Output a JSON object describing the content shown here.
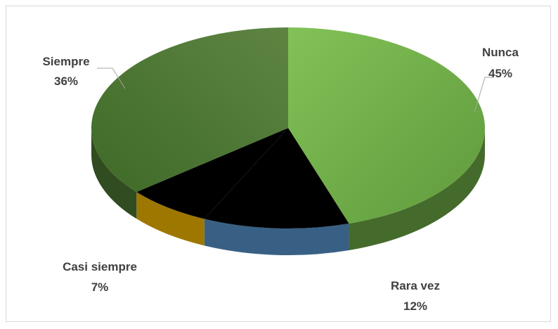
{
  "chart_data": {
    "type": "pie",
    "categories": [
      "Nunca",
      "Rara vez",
      "Casi siempre",
      "Siempre"
    ],
    "values": [
      45,
      12,
      7,
      36
    ],
    "data_labels": [
      "45%",
      "12%",
      "7%",
      "36%"
    ],
    "title": "",
    "legend": "none",
    "three_d": true,
    "colors": {
      "Nunca": "#70ad47",
      "Rara vez": "#5b9bd5",
      "Casi siempre": "#ffc000",
      "Siempre": "#4e7a34"
    }
  }
}
